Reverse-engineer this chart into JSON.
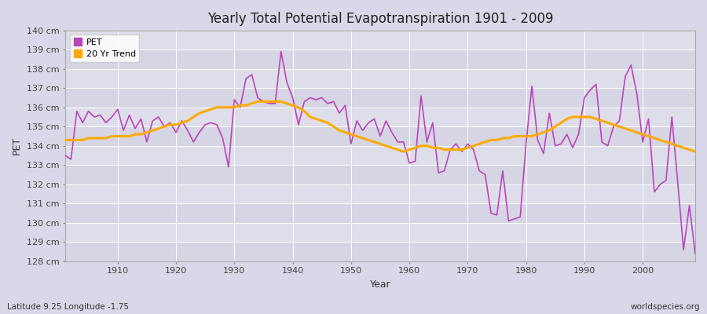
{
  "title": "Yearly Total Potential Evapotranspiration 1901 - 2009",
  "xlabel": "Year",
  "ylabel": "PET",
  "subtitle_left": "Latitude 9.25 Longitude -1.75",
  "subtitle_right": "worldspecies.org",
  "pet_color": "#bb44bb",
  "trend_color": "#ffaa00",
  "background_color": "#d8d8e8",
  "plot_bg_color": "#dcdce8",
  "ylim_min": 128,
  "ylim_max": 140,
  "years": [
    1901,
    1902,
    1903,
    1904,
    1905,
    1906,
    1907,
    1908,
    1909,
    1910,
    1911,
    1912,
    1913,
    1914,
    1915,
    1916,
    1917,
    1918,
    1919,
    1920,
    1921,
    1922,
    1923,
    1924,
    1925,
    1926,
    1927,
    1928,
    1929,
    1930,
    1931,
    1932,
    1933,
    1934,
    1935,
    1936,
    1937,
    1938,
    1939,
    1940,
    1941,
    1942,
    1943,
    1944,
    1945,
    1946,
    1947,
    1948,
    1949,
    1950,
    1951,
    1952,
    1953,
    1954,
    1955,
    1956,
    1957,
    1958,
    1959,
    1960,
    1961,
    1962,
    1963,
    1964,
    1965,
    1966,
    1967,
    1968,
    1969,
    1970,
    1971,
    1972,
    1973,
    1974,
    1975,
    1976,
    1977,
    1978,
    1979,
    1980,
    1981,
    1982,
    1983,
    1984,
    1985,
    1986,
    1987,
    1988,
    1989,
    1990,
    1991,
    1992,
    1993,
    1994,
    1995,
    1996,
    1997,
    1998,
    1999,
    2000,
    2001,
    2002,
    2003,
    2004,
    2005,
    2006,
    2007,
    2008,
    2009
  ],
  "pet": [
    133.5,
    133.3,
    135.8,
    135.2,
    135.8,
    135.5,
    135.6,
    135.2,
    135.5,
    135.9,
    134.8,
    135.6,
    134.9,
    135.4,
    134.2,
    135.3,
    135.5,
    135.0,
    135.2,
    134.7,
    135.3,
    134.8,
    134.2,
    134.7,
    135.1,
    135.2,
    135.1,
    134.4,
    132.9,
    136.4,
    136.0,
    137.5,
    137.7,
    136.5,
    136.3,
    136.2,
    136.2,
    138.9,
    137.3,
    136.5,
    135.1,
    136.3,
    136.5,
    136.4,
    136.5,
    136.2,
    136.3,
    135.7,
    136.1,
    134.1,
    135.3,
    134.8,
    135.2,
    135.4,
    134.5,
    135.3,
    134.7,
    134.2,
    134.2,
    133.1,
    133.2,
    136.6,
    134.2,
    135.2,
    132.6,
    132.7,
    133.8,
    134.1,
    133.7,
    134.1,
    133.8,
    132.7,
    132.5,
    130.5,
    130.4,
    132.7,
    130.1,
    130.2,
    130.3,
    134.1,
    137.1,
    134.3,
    133.6,
    135.7,
    134.0,
    134.1,
    134.6,
    133.9,
    134.6,
    136.5,
    136.9,
    137.2,
    134.2,
    134.0,
    135.0,
    135.3,
    137.6,
    138.2,
    136.7,
    134.2,
    135.4,
    131.6,
    132.0,
    132.2,
    135.5,
    132.1,
    128.6,
    130.9,
    128.4
  ],
  "trend": [
    134.3,
    134.3,
    134.3,
    134.3,
    134.4,
    134.4,
    134.4,
    134.4,
    134.5,
    134.5,
    134.5,
    134.5,
    134.6,
    134.6,
    134.7,
    134.8,
    134.9,
    135.0,
    135.1,
    135.1,
    135.2,
    135.3,
    135.5,
    135.7,
    135.8,
    135.9,
    136.0,
    136.0,
    136.0,
    136.0,
    136.1,
    136.1,
    136.2,
    136.3,
    136.3,
    136.3,
    136.3,
    136.3,
    136.2,
    136.1,
    136.0,
    135.8,
    135.5,
    135.4,
    135.3,
    135.2,
    135.0,
    134.8,
    134.7,
    134.6,
    134.5,
    134.4,
    134.3,
    134.2,
    134.1,
    134.0,
    133.9,
    133.8,
    133.7,
    133.8,
    133.9,
    134.0,
    134.0,
    133.9,
    133.9,
    133.8,
    133.8,
    133.8,
    133.8,
    133.9,
    134.0,
    134.1,
    134.2,
    134.3,
    134.3,
    134.4,
    134.4,
    134.5,
    134.5,
    134.5,
    134.5,
    134.6,
    134.7,
    134.8,
    135.0,
    135.2,
    135.4,
    135.5,
    135.5,
    135.5,
    135.5,
    135.4,
    135.3,
    135.2,
    135.1,
    135.0,
    134.9,
    134.8,
    134.7,
    134.6,
    134.5,
    134.4,
    134.3,
    134.2,
    134.1,
    134.0,
    133.9,
    133.8,
    133.7
  ]
}
